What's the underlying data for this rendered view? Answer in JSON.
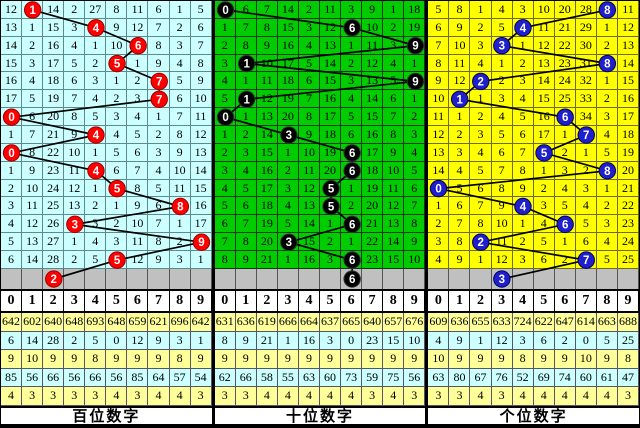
{
  "columns": [
    "0",
    "1",
    "2",
    "3",
    "4",
    "5",
    "6",
    "7",
    "8",
    "9"
  ],
  "colors": {
    "grid_line_left": "#5d8a8a",
    "grid_line_mid": "#143a14",
    "grid_line_right": "#6b6b22",
    "predict_row_bg": "#C0C0C0",
    "stat_row_yellow": "#FFFF99",
    "stat_row_cyan": "#CCFFFF",
    "connector_line": "#000000"
  },
  "panels": [
    {
      "label": "百位数字",
      "bg": "#CCFFFF",
      "line": "#5d8a8a",
      "circle_fill": "#FF0000",
      "circle_stroke": "#990000",
      "rows": [
        {
          "cells": [
            12,
            1,
            14,
            2,
            27,
            8,
            11,
            6,
            1,
            5
          ],
          "circle": 1
        },
        {
          "cells": [
            13,
            1,
            15,
            3,
            4,
            9,
            12,
            7,
            2,
            6
          ],
          "circle": 4
        },
        {
          "cells": [
            14,
            2,
            16,
            4,
            1,
            10,
            6,
            8,
            3,
            7
          ],
          "circle": 6
        },
        {
          "cells": [
            15,
            3,
            17,
            5,
            2,
            5,
            1,
            9,
            4,
            8
          ],
          "circle": 5
        },
        {
          "cells": [
            16,
            4,
            18,
            6,
            3,
            1,
            2,
            7,
            5,
            9
          ],
          "circle": 7
        },
        {
          "cells": [
            17,
            5,
            19,
            7,
            4,
            2,
            3,
            7,
            6,
            10
          ],
          "circle": 7
        },
        {
          "cells": [
            0,
            6,
            20,
            8,
            5,
            3,
            4,
            1,
            7,
            11
          ],
          "circle": 0
        },
        {
          "cells": [
            1,
            7,
            21,
            9,
            4,
            4,
            5,
            2,
            8,
            12
          ],
          "circle": 4
        },
        {
          "cells": [
            0,
            8,
            22,
            10,
            1,
            5,
            6,
            3,
            9,
            13
          ],
          "circle": 0
        },
        {
          "cells": [
            1,
            9,
            23,
            11,
            4,
            6,
            7,
            4,
            10,
            14
          ],
          "circle": 4
        },
        {
          "cells": [
            2,
            10,
            24,
            12,
            1,
            5,
            8,
            5,
            11,
            15
          ],
          "circle": 5
        },
        {
          "cells": [
            3,
            11,
            25,
            13,
            2,
            1,
            9,
            6,
            8,
            16
          ],
          "circle": 8
        },
        {
          "cells": [
            4,
            12,
            26,
            3,
            3,
            2,
            10,
            7,
            1,
            17
          ],
          "circle": 3
        },
        {
          "cells": [
            5,
            13,
            27,
            1,
            4,
            3,
            11,
            8,
            2,
            9
          ],
          "circle": 9
        },
        {
          "cells": [
            6,
            14,
            28,
            2,
            5,
            5,
            12,
            9,
            3,
            1
          ],
          "circle": 5
        }
      ],
      "predict": 2,
      "stats": [
        [
          "642",
          "602",
          "640",
          "648",
          "693",
          "648",
          "659",
          "621",
          "696",
          "642"
        ],
        [
          "6",
          "14",
          "28",
          "2",
          "5",
          "0",
          "12",
          "9",
          "3",
          "1"
        ],
        [
          "9",
          "10",
          "9",
          "9",
          "8",
          "9",
          "9",
          "9",
          "8",
          "9"
        ],
        [
          "85",
          "56",
          "66",
          "56",
          "66",
          "56",
          "85",
          "64",
          "57",
          "54"
        ],
        [
          "4",
          "3",
          "3",
          "3",
          "3",
          "4",
          "3",
          "4",
          "4",
          "3"
        ]
      ]
    },
    {
      "label": "十位数字",
      "bg": "#00CC00",
      "line": "#143a14",
      "circle_fill": "#000000",
      "circle_stroke": "#333333",
      "rows": [
        {
          "cells": [
            0,
            6,
            7,
            14,
            2,
            11,
            3,
            9,
            1,
            18
          ],
          "circle": 0
        },
        {
          "cells": [
            1,
            7,
            8,
            15,
            3,
            12,
            6,
            10,
            2,
            19
          ],
          "circle": 6
        },
        {
          "cells": [
            2,
            8,
            9,
            16,
            4,
            13,
            1,
            11,
            3,
            9
          ],
          "circle": 9
        },
        {
          "cells": [
            3,
            1,
            10,
            17,
            5,
            14,
            2,
            12,
            4,
            1
          ],
          "circle": 1
        },
        {
          "cells": [
            4,
            1,
            11,
            18,
            6,
            15,
            3,
            13,
            5,
            9
          ],
          "circle": 9
        },
        {
          "cells": [
            5,
            1,
            12,
            19,
            7,
            16,
            4,
            14,
            6,
            1
          ],
          "circle": 1
        },
        {
          "cells": [
            0,
            1,
            13,
            20,
            8,
            17,
            5,
            15,
            7,
            2
          ],
          "circle": 0
        },
        {
          "cells": [
            1,
            2,
            14,
            3,
            9,
            18,
            6,
            16,
            8,
            3
          ],
          "circle": 3
        },
        {
          "cells": [
            2,
            3,
            15,
            1,
            10,
            19,
            6,
            17,
            9,
            4
          ],
          "circle": 6
        },
        {
          "cells": [
            3,
            4,
            16,
            2,
            11,
            20,
            6,
            18,
            10,
            5
          ],
          "circle": 6
        },
        {
          "cells": [
            4,
            5,
            17,
            3,
            12,
            5,
            1,
            19,
            11,
            6
          ],
          "circle": 5
        },
        {
          "cells": [
            5,
            6,
            18,
            4,
            13,
            5,
            2,
            20,
            12,
            7
          ],
          "circle": 5
        },
        {
          "cells": [
            6,
            7,
            19,
            5,
            14,
            1,
            6,
            21,
            13,
            8
          ],
          "circle": 6
        },
        {
          "cells": [
            7,
            8,
            20,
            3,
            15,
            2,
            1,
            22,
            14,
            9
          ],
          "circle": 3
        },
        {
          "cells": [
            8,
            9,
            21,
            1,
            16,
            3,
            6,
            23,
            15,
            10
          ],
          "circle": 6
        }
      ],
      "predict": 6,
      "stats": [
        [
          "631",
          "636",
          "619",
          "666",
          "664",
          "637",
          "665",
          "640",
          "657",
          "676"
        ],
        [
          "8",
          "9",
          "21",
          "1",
          "16",
          "3",
          "0",
          "23",
          "15",
          "10"
        ],
        [
          "9",
          "9",
          "9",
          "9",
          "9",
          "9",
          "9",
          "9",
          "9",
          "9"
        ],
        [
          "62",
          "66",
          "58",
          "55",
          "63",
          "60",
          "73",
          "59",
          "75",
          "56"
        ],
        [
          "3",
          "3",
          "4",
          "4",
          "4",
          "4",
          "4",
          "3",
          "4",
          "3"
        ]
      ]
    },
    {
      "label": "个位数字",
      "bg": "#FFFF00",
      "line": "#6b6b22",
      "circle_fill": "#1f1fcc",
      "circle_stroke": "#000066",
      "rows": [
        {
          "cells": [
            5,
            8,
            1,
            4,
            3,
            10,
            20,
            28,
            8,
            11
          ],
          "circle": 8
        },
        {
          "cells": [
            6,
            9,
            2,
            5,
            4,
            11,
            21,
            29,
            1,
            12
          ],
          "circle": 4
        },
        {
          "cells": [
            7,
            10,
            3,
            3,
            1,
            12,
            22,
            30,
            2,
            13
          ],
          "circle": 3
        },
        {
          "cells": [
            8,
            11,
            4,
            1,
            2,
            13,
            23,
            31,
            8,
            14
          ],
          "circle": 8
        },
        {
          "cells": [
            9,
            12,
            2,
            2,
            3,
            14,
            24,
            32,
            1,
            15
          ],
          "circle": 2
        },
        {
          "cells": [
            10,
            1,
            1,
            3,
            4,
            15,
            25,
            33,
            2,
            16
          ],
          "circle": 1
        },
        {
          "cells": [
            11,
            1,
            2,
            4,
            5,
            16,
            6,
            34,
            3,
            17
          ],
          "circle": 6
        },
        {
          "cells": [
            12,
            2,
            3,
            5,
            6,
            17,
            1,
            7,
            4,
            18
          ],
          "circle": 7
        },
        {
          "cells": [
            13,
            3,
            4,
            6,
            7,
            5,
            2,
            1,
            5,
            19
          ],
          "circle": 5
        },
        {
          "cells": [
            14,
            4,
            5,
            7,
            8,
            1,
            3,
            2,
            8,
            20
          ],
          "circle": 8
        },
        {
          "cells": [
            0,
            5,
            6,
            8,
            9,
            2,
            4,
            3,
            1,
            21
          ],
          "circle": 0
        },
        {
          "cells": [
            1,
            6,
            7,
            9,
            4,
            3,
            5,
            4,
            2,
            22
          ],
          "circle": 4
        },
        {
          "cells": [
            2,
            7,
            8,
            10,
            1,
            4,
            6,
            5,
            3,
            23
          ],
          "circle": 6
        },
        {
          "cells": [
            3,
            8,
            2,
            11,
            2,
            5,
            1,
            6,
            4,
            24
          ],
          "circle": 2
        },
        {
          "cells": [
            4,
            9,
            1,
            12,
            3,
            6,
            2,
            7,
            5,
            25
          ],
          "circle": 7
        }
      ],
      "predict": 3,
      "stats": [
        [
          "609",
          "636",
          "655",
          "633",
          "724",
          "622",
          "647",
          "614",
          "663",
          "688"
        ],
        [
          "4",
          "9",
          "1",
          "12",
          "3",
          "6",
          "2",
          "0",
          "5",
          "25"
        ],
        [
          "10",
          "9",
          "9",
          "9",
          "8",
          "9",
          "9",
          "10",
          "9",
          "8"
        ],
        [
          "63",
          "80",
          "67",
          "76",
          "52",
          "69",
          "74",
          "60",
          "61",
          "47"
        ],
        [
          "3",
          "3",
          "4",
          "3",
          "4",
          "4",
          "4",
          "4",
          "4",
          "3"
        ]
      ]
    }
  ]
}
